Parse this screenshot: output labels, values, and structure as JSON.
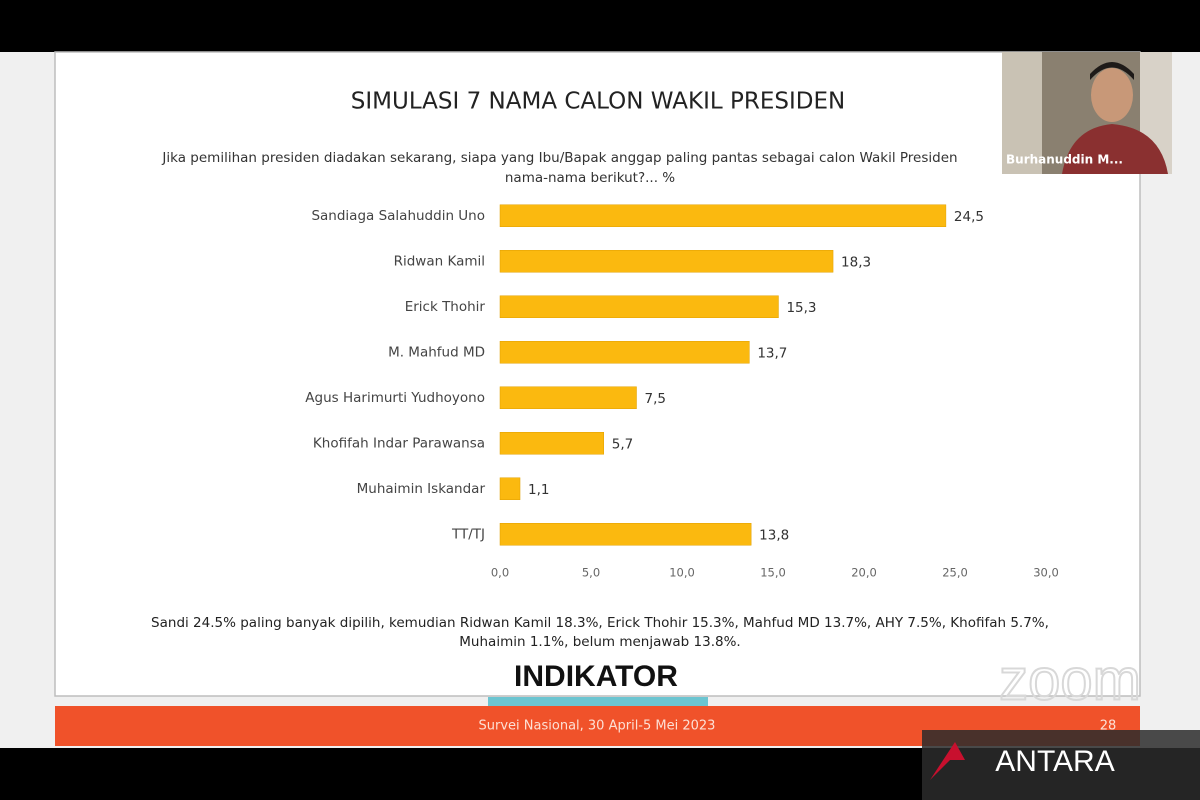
{
  "chart_data": {
    "type": "bar",
    "orientation": "horizontal",
    "title": "SIMULASI 7 NAMA CALON WAKIL PRESIDEN",
    "subtitle": [
      "Jika pemilihan presiden diadakan sekarang, siapa yang Ibu/Bapak anggap paling pantas sebagai calon Wakil Presiden",
      "nama-nama berikut?... %"
    ],
    "categories": [
      "Sandiaga Salahuddin Uno",
      "Ridwan Kamil",
      "Erick Thohir",
      "M. Mahfud MD",
      "Agus Harimurti Yudhoyono",
      "Khofifah Indar Parawansa",
      "Muhaimin Iskandar",
      "TT/TJ"
    ],
    "values": [
      24.5,
      18.3,
      15.3,
      13.7,
      7.5,
      5.7,
      1.1,
      13.8
    ],
    "value_labels": [
      "24,5",
      "18,3",
      "15,3",
      "13,7",
      "7,5",
      "5,7",
      "1,1",
      "13,8"
    ],
    "color": "#fbb90f",
    "xlim": [
      0,
      30
    ],
    "xticks": [
      {
        "value": 0,
        "label": "0,0"
      },
      {
        "value": 5,
        "label": "5,0"
      },
      {
        "value": 10,
        "label": "10,0"
      },
      {
        "value": 15,
        "label": "15,0"
      },
      {
        "value": 20,
        "label": "20,0"
      },
      {
        "value": 25,
        "label": "25,0"
      },
      {
        "value": 30,
        "label": "30,0"
      }
    ],
    "grid": false
  },
  "caption": [
    "Sandi 24.5% paling banyak dipilih, kemudian Ridwan Kamil 18.3%, Erick Thohir 15.3%, Mahfud MD 13.7%, AHY 7.5%, Khofifah 5.7%,",
    "Muhaimin 1.1%, belum menjawab 13.8%."
  ],
  "logo": "INDIKATOR",
  "footer": "Survei Nasional, 30 April-5 Mei 2023",
  "page_number": "28",
  "participant_name": "Burhanuddin M...",
  "zoom_watermark": "zoom",
  "antara_watermark": "ANTARA"
}
